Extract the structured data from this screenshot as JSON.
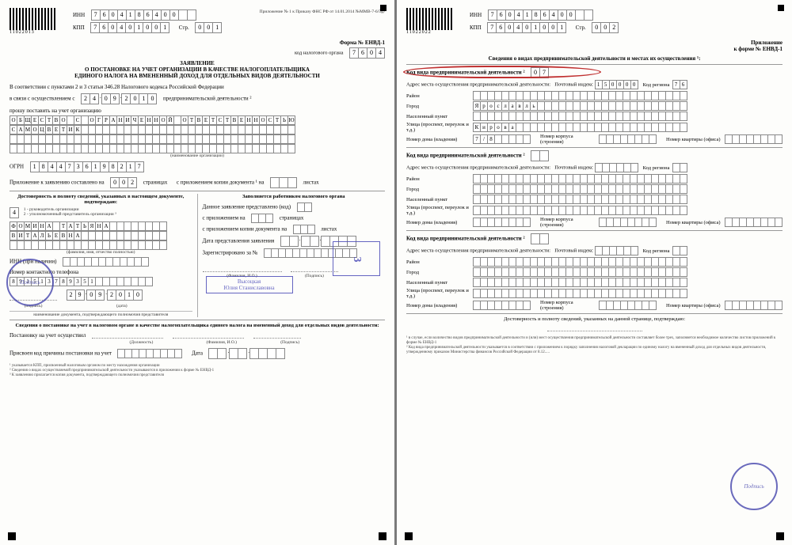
{
  "form": {
    "inn_label": "ИНН",
    "inn": "7604186400",
    "kpp_label": "КПП",
    "kpp": "760401001",
    "page_label": "Стр.",
    "page1": "001",
    "page2": "002",
    "form_name_right": "Форма № ЕНВД-1",
    "org_code_label": "код налогового органа",
    "org_code": "7604",
    "hdr1": "ЗАЯВЛЕНИЕ",
    "hdr2": "О ПОСТАНОВКЕ НА УЧЕТ ОРГАНИЗАЦИИ В КАЧЕСТВЕ НАЛОГОПЛАТЕЛЬЩИКА",
    "hdr3": "ЕДИНОГО НАЛОГА НА ВМЕНЕННЫЙ ДОХОД ДЛЯ ОТДЕЛЬНЫХ ВИДОВ ДЕЯТЕЛЬНОСТИ",
    "pretext1": "В соответствии с пунктами 2 и 3 статьи 346.28 Налогового кодекса Российской Федерации",
    "pretext2_a": "в связи с осуществлением с",
    "pretext2_b": "предпринимательской деятельности ²",
    "date_start": "24.09.2010",
    "pretext3": "прошу поставить на учет организацию",
    "org_name_line1": "ОБЩЕСТВО С ОГРАНИЧЕННОЙ ОТВЕТСТВЕННОСТЬЮ",
    "org_name_line2": "САМОЦВЕТИК",
    "org_name_caption": "(наименование организации)",
    "ogrn_label": "ОГРН",
    "ogrn": "1844736198217",
    "app_text1": "Приложение к заявлению составлено на",
    "app_pages": "002",
    "app_text2": "страницах",
    "app_text3": "с приложением копии документа ¹ на",
    "app_sheets": "",
    "app_text4": "листах",
    "confirm_hdr_l": "Достоверность и полноту сведений, указанных в настоящем документе, подтверждаю:",
    "confirm_hdr_r": "Заполняется работником налогового органа",
    "role_code": "4",
    "role_caption": "1 - руководитель организации\n2 - уполномоченный представитель организации ³",
    "fio1": "ФОМИНА ТАТЬЯНА",
    "fio2": "ВИТАЛЬЕВНА",
    "fio_caption": "(фамилия, имя, отчество полностью)",
    "inn2_label": "ИНН (при наличии)",
    "phone_label": "Номер контактного телефона",
    "phone": "891513789351",
    "sign_date": "29.09.2010",
    "sig_caption_l": "(подпись)",
    "sig_caption_r": "(дата)",
    "doc_caption": "наименование документа, подтверждающего полномочия представителя",
    "r_line1": "Данное заявление представлено (код)",
    "r_line2a": "с приложением на",
    "r_line2b": "страницах",
    "r_line3a": "с приложением копии документа на",
    "r_line3b": "листах",
    "r_line4": "Дата представления заявления",
    "r_line5": "Зарегистрировано за №",
    "bottom_hdr": "Сведения о постановке на учет в налоговом органе в качестве налогоплательщика единого налога на вмененный доход для отдельных видов деятельности:",
    "reg_line1": "Постановку на учет осуществил",
    "reg_c1": "(Должность)",
    "reg_c2": "(Фамилия, И.О.)",
    "reg_c3": "(Подпись)",
    "reg_line2": "Присвоен код причины постановки на учет",
    "reg_date": "Дата",
    "footnote1": "¹ указывается КПП, присвоенный налоговым органом по месту нахождения организации",
    "footnote2": "² Сведения о видах осуществляемой предпринимательской деятельности указываются в приложении к форме № ЕНВД-1",
    "footnote3": "³ К заявлению прилагается копия документа, подтверждающего полномочия представителя"
  },
  "barcodes": {
    "p1": "11022013",
    "p2": "11022022"
  },
  "page2": {
    "top_right1": "Приложение",
    "top_right2": "к форме № ЕНВД-1",
    "hdr": "Сведения о видах предпринимательской деятельности и местах их осуществления ¹:",
    "kod_label": "Код вида предпринимательской деятельности ²",
    "kod": "07",
    "addr_label": "Адрес места осуществления предпринимательской деятельности:",
    "idx_label": "Почтовый индекс",
    "idx": "150000",
    "region_label": "Код региона",
    "region": "76",
    "district": "Район",
    "city_label": "Город",
    "city": "Ярославль",
    "settlement": "Населенный пункт",
    "street_label": "Улица (проспект, переулок и т.д.)",
    "street": "Кирова",
    "house_label": "Номер дома (владения)",
    "house": "7/8",
    "bld_label": "Номер корпуса (строения)",
    "flat_label": "Номер квартиры (офиса)",
    "confirm": "Достоверность и полноту сведений, указанных на данной странице, подтверждаю:",
    "foot1": "¹ в случае, если количество видов предпринимательской деятельности и (или) мест осуществления предпринимательской деятельности составляет более трех, заполняется необходимое количество листов приложений к форме № ЕНВД-1",
    "foot2": "² Код вида предпринимательской деятельности указывается в соответствии с приложением к порядку заполнения налоговой декларации по единому налогу на вмененный доход для отдельных видов деятельности, утвержденному приказом Министерства финансов Российской Федерации от 8.12....."
  },
  "stamp": {
    "name1": "Высоцкая",
    "name2": "Юлия Станиславовна"
  },
  "seal_text": "Подпись"
}
